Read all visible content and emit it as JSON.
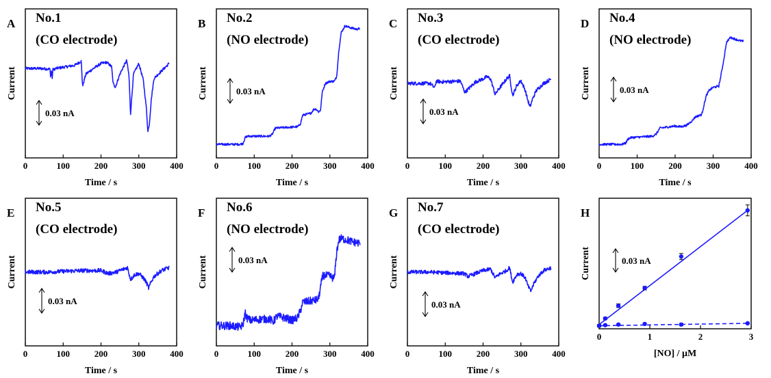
{
  "chart_data": [
    {
      "type": "line",
      "letter": "A",
      "title_line1": "No.1",
      "title_line2": "(CO electrode)",
      "xlabel": "Time / s",
      "ylabel": "Current",
      "xlim": [
        0,
        400
      ],
      "xticks": [
        0,
        100,
        200,
        300,
        400
      ],
      "scale_bar": "0.03 nA",
      "scale_bar_value_nA": 0.03,
      "ylim": [
        -0.14,
        0.1
      ],
      "series": [
        {
          "color": "#1a1aff",
          "noise": 0.0022,
          "x": [
            0,
            40,
            65,
            67,
            69,
            71,
            73,
            75,
            80,
            100,
            130,
            148,
            150,
            152,
            155,
            160,
            180,
            200,
            215,
            228,
            232,
            238,
            250,
            262,
            268,
            274,
            278,
            282,
            286,
            300,
            312,
            320,
            324,
            328,
            333,
            340,
            360,
            380
          ],
          "y": [
            0.004,
            0.004,
            0.003,
            -0.01,
            0.002,
            -0.012,
            0.003,
            0.002,
            0.004,
            0.006,
            0.009,
            0.016,
            -0.012,
            -0.024,
            -0.016,
            -0.005,
            0.004,
            0.012,
            0.014,
            0.007,
            -0.02,
            -0.026,
            -0.005,
            0.01,
            0.017,
            -0.008,
            -0.07,
            -0.038,
            -0.005,
            0.012,
            -0.015,
            -0.06,
            -0.098,
            -0.084,
            -0.045,
            -0.012,
            0.0,
            0.012
          ]
        }
      ]
    },
    {
      "type": "line",
      "letter": "B",
      "title_line1": "No.2",
      "title_line2": "(NO electrode)",
      "xlabel": "Time / s",
      "ylabel": "Current",
      "xlim": [
        0,
        400
      ],
      "xticks": [
        0,
        100,
        200,
        300,
        400
      ],
      "scale_bar": "0.03 nA",
      "scale_bar_value_nA": 0.03,
      "ylim": [
        -0.02,
        0.2
      ],
      "series": [
        {
          "color": "#1a1aff",
          "noise": 0.0016,
          "x": [
            0,
            60,
            70,
            76,
            82,
            140,
            148,
            156,
            215,
            222,
            228,
            250,
            258,
            264,
            270,
            275,
            280,
            288,
            300,
            312,
            318,
            324,
            330,
            340,
            350,
            370,
            380
          ],
          "y": [
            0.0,
            0.0,
            0.001,
            0.01,
            0.012,
            0.012,
            0.015,
            0.024,
            0.026,
            0.03,
            0.043,
            0.046,
            0.052,
            0.052,
            0.048,
            0.05,
            0.077,
            0.09,
            0.093,
            0.093,
            0.1,
            0.14,
            0.165,
            0.175,
            0.173,
            0.17,
            0.171
          ]
        }
      ]
    },
    {
      "type": "line",
      "letter": "C",
      "title_line1": "No.3",
      "title_line2": "(CO electrode)",
      "xlabel": "Time / s",
      "ylabel": "Current",
      "xlim": [
        0,
        400
      ],
      "xticks": [
        0,
        100,
        200,
        300,
        400
      ],
      "scale_bar": "0.03 nA",
      "scale_bar_value_nA": 0.03,
      "ylim": [
        -0.1,
        0.1
      ],
      "series": [
        {
          "color": "#1a1aff",
          "noise": 0.0024,
          "x": [
            0,
            60,
            72,
            76,
            90,
            140,
            152,
            160,
            180,
            200,
            210,
            220,
            232,
            238,
            250,
            262,
            270,
            278,
            282,
            288,
            300,
            312,
            318,
            324,
            330,
            340,
            360,
            380
          ],
          "y": [
            0.0,
            0.0,
            -0.006,
            0.003,
            0.002,
            0.003,
            -0.012,
            -0.008,
            0.002,
            0.006,
            0.009,
            0.006,
            -0.015,
            -0.01,
            -0.002,
            0.006,
            0.01,
            -0.016,
            -0.012,
            -0.004,
            0.004,
            -0.01,
            -0.022,
            -0.032,
            -0.022,
            -0.01,
            0.0,
            0.006
          ]
        }
      ]
    },
    {
      "type": "line",
      "letter": "D",
      "title_line1": "No.4",
      "title_line2": "(NO electrode)",
      "xlabel": "Time / s",
      "ylabel": "Current",
      "xlim": [
        0,
        400
      ],
      "xticks": [
        0,
        100,
        200,
        300,
        400
      ],
      "scale_bar": "0.03 nA",
      "scale_bar_value_nA": 0.03,
      "ylim": [
        -0.02,
        0.2
      ],
      "series": [
        {
          "color": "#1a1aff",
          "noise": 0.0016,
          "x": [
            0,
            60,
            70,
            76,
            84,
            140,
            150,
            160,
            200,
            215,
            230,
            245,
            252,
            260,
            270,
            276,
            282,
            290,
            300,
            315,
            320,
            328,
            335,
            345,
            355,
            370,
            380
          ],
          "y": [
            0.0,
            0.0,
            0.002,
            0.008,
            0.01,
            0.012,
            0.015,
            0.024,
            0.027,
            0.026,
            0.028,
            0.035,
            0.04,
            0.042,
            0.044,
            0.058,
            0.072,
            0.08,
            0.084,
            0.086,
            0.1,
            0.125,
            0.15,
            0.158,
            0.156,
            0.153,
            0.152
          ]
        }
      ]
    },
    {
      "type": "line",
      "letter": "E",
      "title_line1": "No.5",
      "title_line2": "(CO electrode)",
      "xlabel": "Time / s",
      "ylabel": "Current",
      "xlim": [
        0,
        400
      ],
      "xticks": [
        0,
        100,
        200,
        300,
        400
      ],
      "scale_bar": "0.03 nA",
      "scale_bar_value_nA": 0.03,
      "ylim": [
        -0.1,
        0.1
      ],
      "series": [
        {
          "color": "#1a1aff",
          "noise": 0.0028,
          "x": [
            0,
            60,
            100,
            150,
            200,
            220,
            240,
            260,
            270,
            278,
            282,
            288,
            300,
            312,
            320,
            326,
            332,
            340,
            360,
            380
          ],
          "y": [
            0.0,
            0.0,
            0.001,
            0.002,
            0.002,
            -0.002,
            0.0,
            0.004,
            0.006,
            -0.01,
            -0.008,
            -0.004,
            -0.002,
            -0.008,
            -0.014,
            -0.022,
            -0.014,
            -0.006,
            0.002,
            0.006
          ]
        }
      ]
    },
    {
      "type": "line",
      "letter": "F",
      "title_line1": "No.6",
      "title_line2": "(NO electrode)",
      "xlabel": "Time / s",
      "ylabel": "Current",
      "xlim": [
        0,
        400
      ],
      "xticks": [
        0,
        100,
        200,
        300,
        400
      ],
      "scale_bar": "0.03 nA",
      "scale_bar_value_nA": 0.03,
      "ylim": [
        -0.02,
        0.2
      ],
      "series": [
        {
          "color": "#1a1aff",
          "noise": 0.006,
          "x": [
            0,
            40,
            60,
            70,
            76,
            80,
            90,
            120,
            140,
            150,
            160,
            180,
            200,
            215,
            222,
            228,
            250,
            262,
            270,
            276,
            282,
            300,
            312,
            318,
            324,
            330,
            345,
            360,
            380
          ],
          "y": [
            0.01,
            0.01,
            0.008,
            0.01,
            0.03,
            0.022,
            0.018,
            0.02,
            0.02,
            0.016,
            0.024,
            0.022,
            0.018,
            0.022,
            0.032,
            0.045,
            0.047,
            0.048,
            0.05,
            0.07,
            0.085,
            0.084,
            0.08,
            0.12,
            0.138,
            0.14,
            0.138,
            0.135,
            0.133
          ]
        }
      ]
    },
    {
      "type": "line",
      "letter": "G",
      "title_line1": "No.7",
      "title_line2": "(CO electrode)",
      "xlabel": "Time / s",
      "ylabel": "Current",
      "xlim": [
        0,
        400
      ],
      "xticks": [
        0,
        100,
        200,
        300,
        400
      ],
      "scale_bar": "0.03 nA",
      "scale_bar_value_nA": 0.03,
      "ylim": [
        -0.1,
        0.1
      ],
      "series": [
        {
          "color": "#1a1aff",
          "noise": 0.0026,
          "x": [
            0,
            60,
            100,
            150,
            160,
            180,
            200,
            220,
            232,
            240,
            250,
            262,
            270,
            278,
            282,
            290,
            300,
            312,
            318,
            326,
            334,
            345,
            360,
            380
          ],
          "y": [
            0.0,
            0.0,
            -0.001,
            -0.002,
            -0.006,
            -0.002,
            0.002,
            0.004,
            -0.008,
            -0.004,
            -0.001,
            0.002,
            0.006,
            -0.014,
            -0.01,
            -0.003,
            -0.002,
            -0.008,
            -0.018,
            -0.026,
            -0.016,
            -0.006,
            0.002,
            0.006
          ]
        }
      ]
    },
    {
      "type": "scatter",
      "letter": "H",
      "title_line1": "",
      "title_line2": "",
      "xlabel": "[NO] / μM",
      "ylabel": "Current",
      "xlim": [
        0,
        3
      ],
      "xticks": [
        0,
        1,
        2,
        3
      ],
      "scale_bar": "0.03 nA",
      "scale_bar_value_nA": 0.03,
      "ylim": [
        -0.005,
        0.21
      ],
      "series": [
        {
          "color": "#1a1aff",
          "line": "solid",
          "x": [
            0,
            0.12,
            0.38,
            0.9,
            1.62,
            2.93
          ],
          "y": [
            0.0,
            0.012,
            0.033,
            0.062,
            0.114,
            0.19
          ],
          "err": [
            0.002,
            0.002,
            0.003,
            0.003,
            0.005,
            0.009
          ],
          "fit": [
            [
              0,
              0.002
            ],
            [
              2.93,
              0.19
            ]
          ]
        },
        {
          "color": "#1a1aff",
          "line": "dashed",
          "x": [
            0,
            0.12,
            0.38,
            0.9,
            1.62,
            2.93
          ],
          "y": [
            0.0,
            0.001,
            0.002,
            0.003,
            0.002,
            0.004
          ],
          "err": [
            0.001,
            0.001,
            0.001,
            0.001,
            0.002,
            0.001
          ],
          "fit": [
            [
              0,
              0.0
            ],
            [
              2.93,
              0.004
            ]
          ]
        }
      ]
    }
  ]
}
